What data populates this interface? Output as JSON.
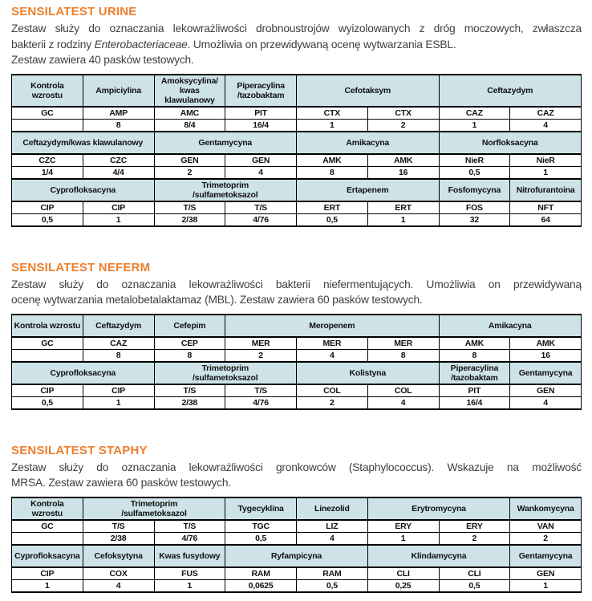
{
  "colors": {
    "heading_orange": "#ee7e2e",
    "table_header_bg": "#cde3e8",
    "body_text": "#404040",
    "table_border": "#000000"
  },
  "sections": [
    {
      "title": "SENSILATEST URINE",
      "lines": [
        "Zestaw służy do oznaczania lekowrażliwości drobnoustrojów wyizolowanych z dróg moczowych, zwłaszcza"
      ],
      "line2_pre": "bakterii z rodziny ",
      "line2_italic": "Enterobacteriaceae",
      "line2_post": ". Umożliwia on przewidywaną ocenę wytwarzania ESBL.",
      "line3": "Zestaw zawiera 40 pasków testowych.",
      "table": {
        "columns": 8,
        "bands": [
          {
            "header": [
              {
                "label": "Kontrola\nwzrostu",
                "span": 1
              },
              {
                "label": "Ampiciylina",
                "span": 1
              },
              {
                "label": "Amoksycylina/\nkwas klawulanowy",
                "span": 1
              },
              {
                "label": "Piperacylina\n/tazobaktam",
                "span": 1
              },
              {
                "label": "Cefotaksym",
                "span": 2
              },
              {
                "label": "Ceftazydym",
                "span": 2
              }
            ],
            "codes": [
              "GC",
              "AMP",
              "AMC",
              "PIT",
              "CTX",
              "CTX",
              "CAZ",
              "CAZ"
            ],
            "values": [
              "",
              "8",
              "8/4",
              "16/4",
              "1",
              "2",
              "1",
              "4"
            ]
          },
          {
            "header": [
              {
                "label": "Ceftazydym/kwas klawulanowy",
                "span": 2
              },
              {
                "label": "Gentamycyna",
                "span": 2
              },
              {
                "label": "Amikacyna",
                "span": 2
              },
              {
                "label": "Norfloksacyna",
                "span": 2
              }
            ],
            "codes": [
              "CZC",
              "CZC",
              "GEN",
              "GEN",
              "AMK",
              "AMK",
              "NieR",
              "NieR"
            ],
            "values": [
              "1/4",
              "4/4",
              "2",
              "4",
              "8",
              "16",
              "0,5",
              "1"
            ]
          },
          {
            "header": [
              {
                "label": "Cyprofloksacyna",
                "span": 2
              },
              {
                "label": "Trimetoprim\n/sulfametoksazol",
                "span": 2
              },
              {
                "label": "Ertapenem",
                "span": 2
              },
              {
                "label": "Fosfomycyna",
                "span": 1
              },
              {
                "label": "Nitrofurantoina",
                "span": 1
              }
            ],
            "codes": [
              "CIP",
              "CIP",
              "T/S",
              "T/S",
              "ERT",
              "ERT",
              "FOS",
              "NFT"
            ],
            "values": [
              "0,5",
              "1",
              "2/38",
              "4/76",
              "0,5",
              "1",
              "32",
              "64"
            ]
          }
        ]
      }
    },
    {
      "title": "SENSILATEST NEFERM",
      "lines": [
        "Zestaw służy do oznaczania lekowrażliwości bakterii niefermentujących. Umożliwia on przewidywaną",
        "ocenę wytwarzania metalobetalaktamaz (MBL). Zestaw zawiera 60 pasków testowych."
      ],
      "table": {
        "columns": 8,
        "bands": [
          {
            "header": [
              {
                "label": "Kontrola wzrostu",
                "span": 1
              },
              {
                "label": "Ceftazydym",
                "span": 1
              },
              {
                "label": "Cefepim",
                "span": 1
              },
              {
                "label": "Meropenem",
                "span": 3
              },
              {
                "label": "Amikacyna",
                "span": 2
              }
            ],
            "codes": [
              "GC",
              "CAZ",
              "CEP",
              "MER",
              "MER",
              "MER",
              "AMK",
              "AMK"
            ],
            "values": [
              "",
              "8",
              "8",
              "2",
              "4",
              "8",
              "8",
              "16"
            ]
          },
          {
            "header": [
              {
                "label": "Cyprofloksacyna",
                "span": 2
              },
              {
                "label": "Trimetoprim\n/sulfametoksazol",
                "span": 2
              },
              {
                "label": "Kolistyna",
                "span": 2
              },
              {
                "label": "Piperacylina\n/tazobaktam",
                "span": 1
              },
              {
                "label": "Gentamycyna",
                "span": 1
              }
            ],
            "codes": [
              "CIP",
              "CIP",
              "T/S",
              "T/S",
              "COL",
              "COL",
              "PIT",
              "GEN"
            ],
            "values": [
              "0,5",
              "1",
              "2/38",
              "4/76",
              "2",
              "4",
              "16/4",
              "4"
            ]
          }
        ]
      }
    },
    {
      "title": "SENSILATEST STAPHY",
      "lines": [
        "Zestaw służy do oznaczania lekowrażliwości gronkowców (Staphylococcus). Wskazuje na możliwość",
        "MRSA. Zestaw zawiera 60 pasków testowych."
      ],
      "table": {
        "columns": 8,
        "bands": [
          {
            "header": [
              {
                "label": "Kontrola\nwzrostu",
                "span": 1
              },
              {
                "label": "Trimetoprim\n/sulfametoksazol",
                "span": 2
              },
              {
                "label": "Tygecyklina",
                "span": 1
              },
              {
                "label": "Linezolid",
                "span": 1
              },
              {
                "label": "Erytromycyna",
                "span": 2
              },
              {
                "label": "Wankomycyna",
                "span": 1
              }
            ],
            "codes": [
              "GC",
              "T/S",
              "T/S",
              "TGC",
              "LIZ",
              "ERY",
              "ERY",
              "VAN"
            ],
            "values": [
              "",
              "2/38",
              "4/76",
              "0,5",
              "4",
              "1",
              "2",
              "2"
            ]
          },
          {
            "header": [
              {
                "label": "Cyprofloksacyna",
                "span": 1
              },
              {
                "label": "Cefoksytyna",
                "span": 1
              },
              {
                "label": "Kwas fusydowy",
                "span": 1
              },
              {
                "label": "Ryfampicyna",
                "span": 2
              },
              {
                "label": "Klindamycyna",
                "span": 2
              },
              {
                "label": "Gentamycyna",
                "span": 1
              }
            ],
            "codes": [
              "CIP",
              "COX",
              "FUS",
              "RAM",
              "RAM",
              "CLI",
              "CLI",
              "GEN"
            ],
            "values": [
              "1",
              "4",
              "1",
              "0,0625",
              "0,5",
              "0,25",
              "0,5",
              "1"
            ]
          }
        ]
      }
    }
  ]
}
